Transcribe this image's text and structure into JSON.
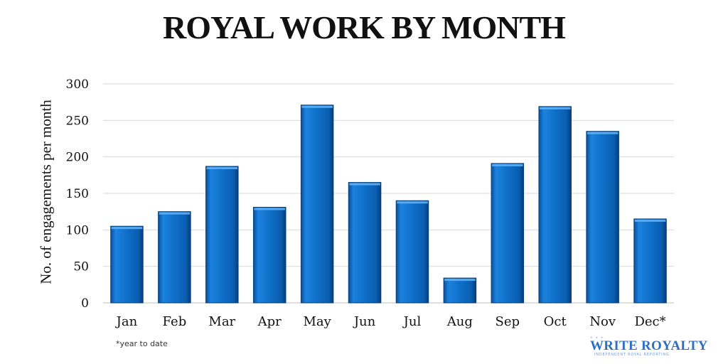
{
  "chart_data": {
    "type": "bar",
    "title": "ROYAL WORK BY MONTH",
    "xlabel": "",
    "ylabel": "No. of engagements per month",
    "categories": [
      "Jan",
      "Feb",
      "Mar",
      "Apr",
      "May",
      "Jun",
      "Jul",
      "Aug",
      "Sep",
      "Oct",
      "Nov",
      "Dec*"
    ],
    "values": [
      105,
      125,
      187,
      131,
      271,
      165,
      140,
      34,
      191,
      269,
      235,
      115
    ],
    "ylim": [
      0,
      300
    ],
    "yticks": [
      0,
      50,
      100,
      150,
      200,
      250,
      300
    ],
    "grid": true,
    "bar_color": "#0f6fc8"
  },
  "footnote": "*year to date",
  "logo": {
    "dots": "• • •",
    "text": "WRITE ROYALTY",
    "tagline": "INDEPENDENT ROYAL REPORTING"
  }
}
